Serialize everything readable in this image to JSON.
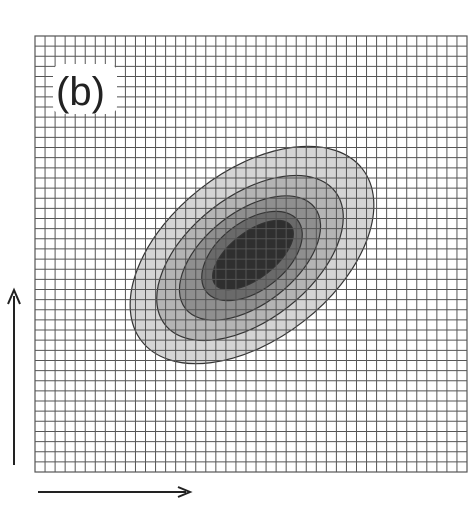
{
  "figure": {
    "panel_label": "(b)",
    "grid": {
      "columns": 43,
      "rows": 43,
      "line_color": "#555555",
      "background": "#ffffff"
    },
    "contour_levels": [
      {
        "level": 1,
        "fill": "#d4d4d4"
      },
      {
        "level": 2,
        "fill": "#b4b4b4"
      },
      {
        "level": 3,
        "fill": "#8f8f8f"
      },
      {
        "level": 4,
        "fill": "#6a6a6a"
      },
      {
        "level": 5,
        "fill": "#2f2f2f"
      }
    ],
    "axes": {
      "vertical_arrow": "up",
      "horizontal_arrow": "right"
    }
  }
}
